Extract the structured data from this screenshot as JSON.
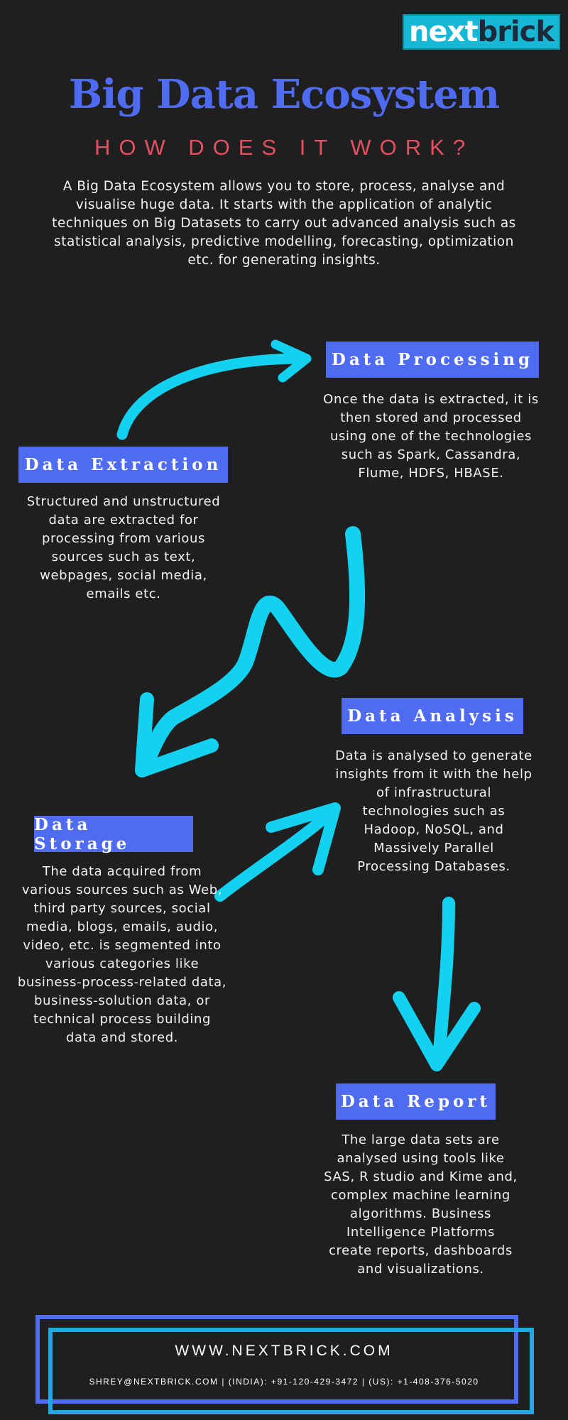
{
  "brand": {
    "logo_white": "next",
    "logo_dark": "brick",
    "accent_blue": "#4f6bf2",
    "accent_cyan": "#12d2f0",
    "accent_red": "#e55061"
  },
  "header": {
    "title": "Big Data Ecosystem",
    "subtitle": "HOW DOES IT WORK?",
    "intro": "A Big Data Ecosystem allows you to store, process, analyse and visualise huge data. It starts with the application of analytic techniques on Big Datasets to carry out advanced analysis such as statistical analysis, predictive modelling, forecasting, optimization etc. for generating insights."
  },
  "steps": {
    "processing": {
      "label": "Data Processing",
      "text": "Once the data is extracted, it is then stored and processed using one of the technologies such as Spark, Cassandra, Flume, HDFS, HBASE."
    },
    "extraction": {
      "label": "Data Extraction",
      "text": "Structured and unstructured data are extracted for processing from various sources such as text, webpages, social media, emails etc."
    },
    "analysis": {
      "label": "Data Analysis",
      "text": "Data is analysed to generate insights from it with the help of infrastructural technologies such as Hadoop, NoSQL, and Massively Parallel Processing Databases."
    },
    "storage": {
      "label": "Data Storage",
      "text": "The data acquired from various sources such as Web, third party sources, social media, blogs, emails, audio, video, etc. is segmented into various categories like business-process-related data, business-solution data, or technical process building data and stored."
    },
    "report": {
      "label": "Data Report",
      "text": "The large data sets are analysed using tools like SAS, R studio and Kime and, complex machine learning algorithms. Business Intelligence Platforms create  reports, dashboards and visualizations."
    }
  },
  "footer": {
    "url": "WWW.NEXTBRICK.COM",
    "contact": "SHREY@NEXTBRICK.COM | (INDIA): +91-120-429-3472 | (US): +1-408-376-5020"
  }
}
